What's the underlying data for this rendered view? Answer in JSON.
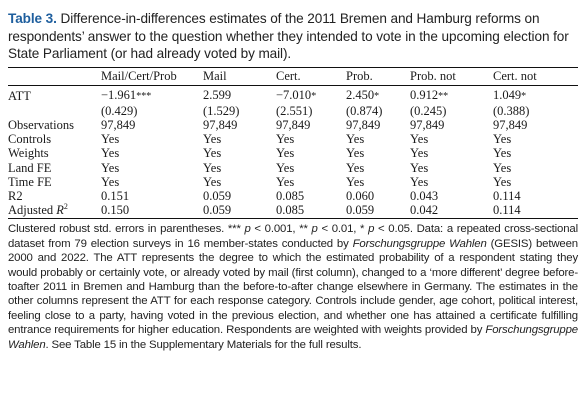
{
  "caption": {
    "label": "Table 3.",
    "text": "Difference-in-differences estimates of the 2011 Bremen and Hamburg reforms on respondents’ answer to the question whether they intended to vote in the upcoming election for State Parliament (or had already voted by mail)."
  },
  "columns": [
    "",
    "Mail/Cert/Prob",
    "Mail",
    "Cert.",
    "Prob.",
    "Prob. not",
    "Cert. not"
  ],
  "att": {
    "label": "ATT",
    "estimates": [
      {
        "value": "−1.961",
        "stars": "***"
      },
      {
        "value": "2.599",
        "stars": ""
      },
      {
        "value": "−7.010",
        "stars": "*"
      },
      {
        "value": "2.450",
        "stars": "*"
      },
      {
        "value": "0.912",
        "stars": "**"
      },
      {
        "value": "1.049",
        "stars": "*"
      }
    ],
    "std_errors": [
      "(0.429)",
      "(1.529)",
      "(2.551)",
      "(0.874)",
      "(0.245)",
      "(0.388)"
    ]
  },
  "rows": [
    {
      "label": "Observations",
      "cells": [
        "97,849",
        "97,849",
        "97,849",
        "97,849",
        "97,849",
        "97,849"
      ]
    },
    {
      "label": "Controls",
      "cells": [
        "Yes",
        "Yes",
        "Yes",
        "Yes",
        "Yes",
        "Yes"
      ]
    },
    {
      "label": "Weights",
      "cells": [
        "Yes",
        "Yes",
        "Yes",
        "Yes",
        "Yes",
        "Yes"
      ]
    },
    {
      "label": "Land FE",
      "cells": [
        "Yes",
        "Yes",
        "Yes",
        "Yes",
        "Yes",
        "Yes"
      ]
    },
    {
      "label": "Time FE",
      "cells": [
        "Yes",
        "Yes",
        "Yes",
        "Yes",
        "Yes",
        "Yes"
      ]
    },
    {
      "label": "R2",
      "cells": [
        "0.151",
        "0.059",
        "0.085",
        "0.060",
        "0.043",
        "0.114"
      ]
    }
  ],
  "adj_r2": {
    "label_prefix": "Adjusted ",
    "label_var": "R",
    "label_sup": "2",
    "cells": [
      "0.150",
      "0.059",
      "0.085",
      "0.059",
      "0.042",
      "0.114"
    ]
  },
  "notes": {
    "p1": "Clustered robust std. errors in parentheses. *** ",
    "p1_italic": "p",
    "p1b": " < 0.001, ** ",
    "p1b_italic": "p",
    "p1c": " < 0.01, * ",
    "p1c_italic": "p",
    "p1d": " < 0.05. Data: a repeated cross-sectional dataset from 79 election surveys in 16 member-states conducted by ",
    "source_italic": "Forschungsgruppe Wahlen",
    "p2": " (GESIS) between 2000 and 2022. The ATT represents the degree to which the estimated probability of a respondent stating they would probably or certainly vote, or already voted by mail (first column), changed to a ‘more different’ degree before-toafter 2011 in Bremen and Hamburg than the before-to-after change elsewhere in Germany. The estimates in the other columns represent the ATT for each response category. Controls include gender, age cohort, political interest, feeling close to a party, having voted in the previous election, and whether one has attained a certificate fulfilling entrance requirements for higher education. Respondents are weighted with weights provided by ",
    "source_italic2": "Forschungsgruppe Wahlen",
    "p3": ". See Table 15 in the Supplementary Materials for the full results."
  }
}
